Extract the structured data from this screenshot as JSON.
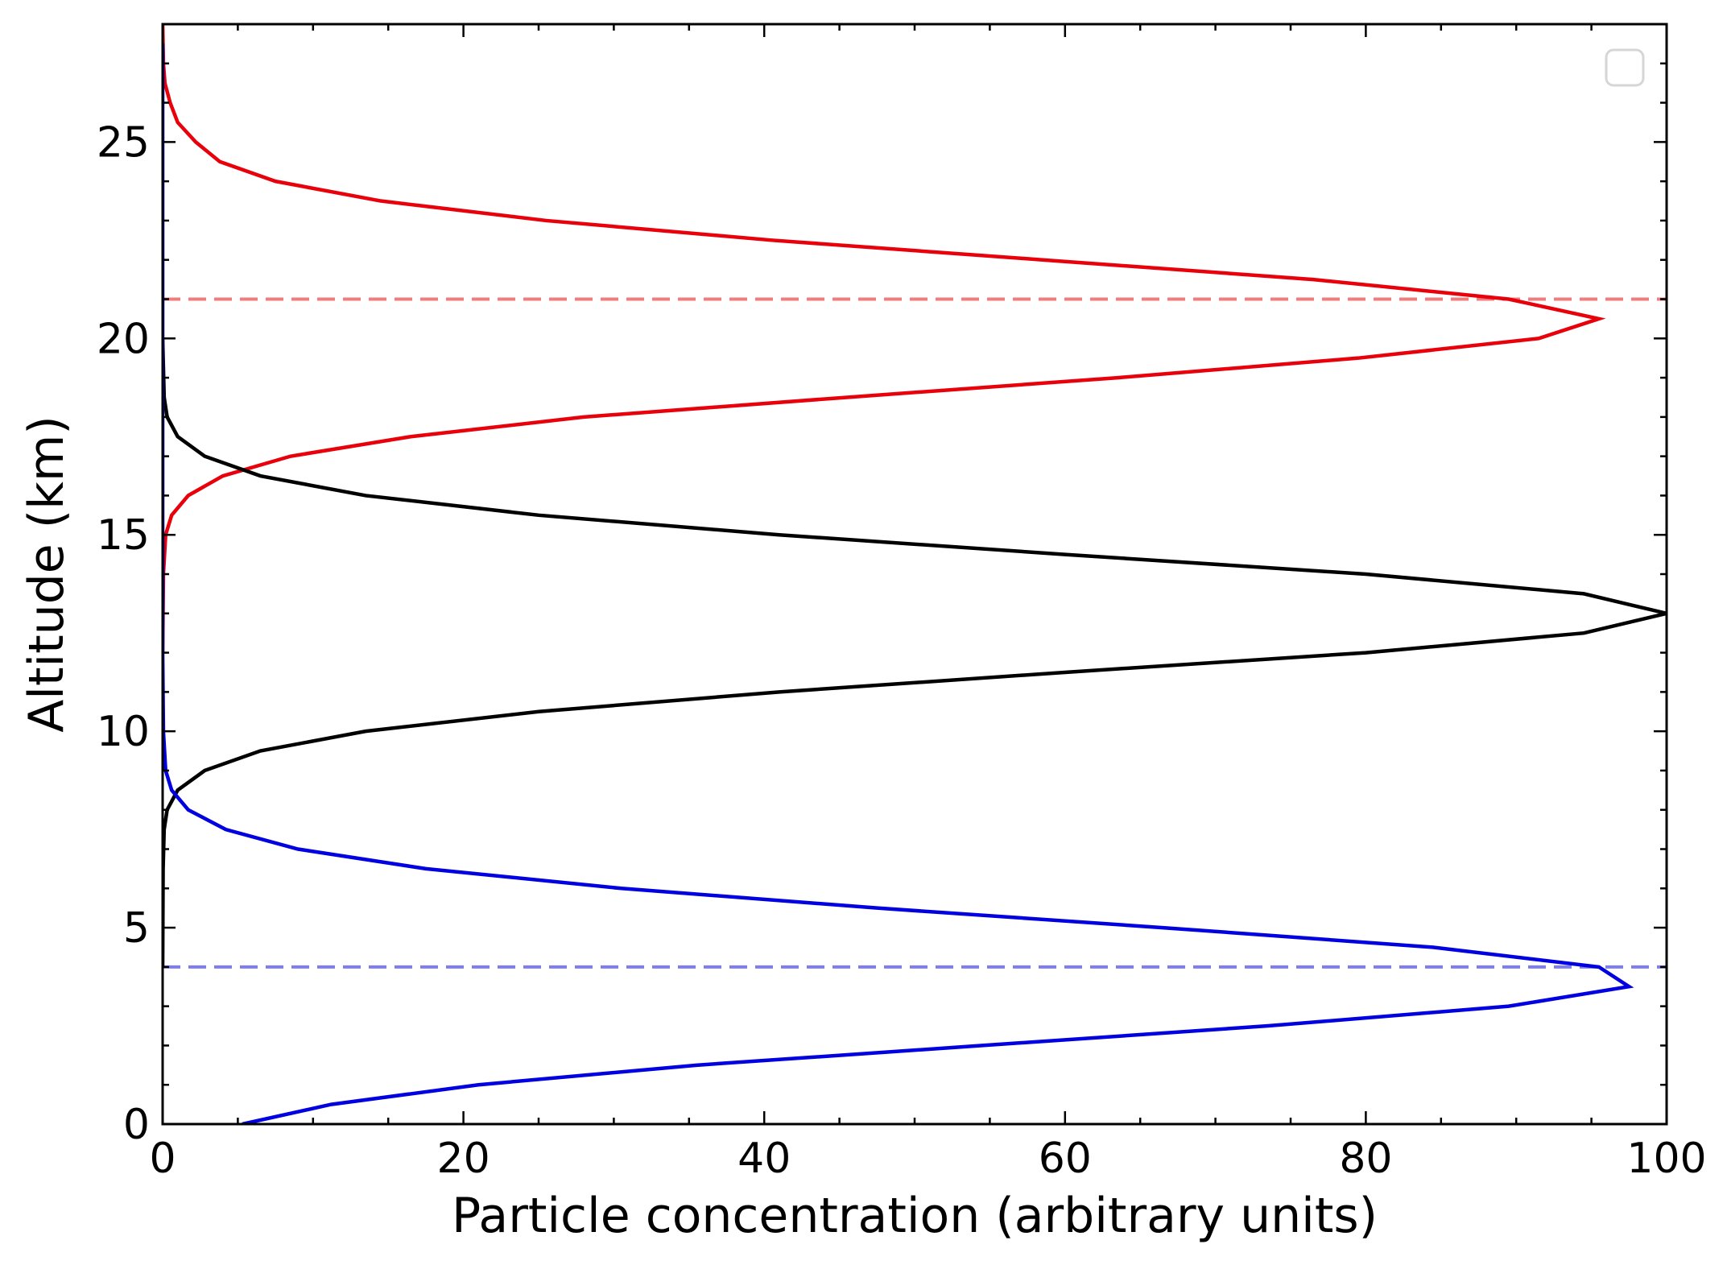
{
  "chart_data": {
    "type": "line",
    "title": "",
    "xlabel": "Particle concentration (arbitrary units)",
    "ylabel": "Altitude (km)",
    "xlim": [
      0,
      100
    ],
    "ylim": [
      0,
      28
    ],
    "xticks": [
      0,
      20,
      40,
      60,
      80,
      100
    ],
    "xtick_labels": [
      "0",
      "20",
      "40",
      "60",
      "80",
      "100"
    ],
    "yticks": [
      0,
      5,
      10,
      15,
      20,
      25
    ],
    "ytick_labels": [
      "0",
      "5",
      "10",
      "15",
      "20",
      "25"
    ],
    "x_minor_step": 5,
    "y_minor_step": 1,
    "grid": false,
    "legend": {
      "placement": "upper right",
      "entries": []
    },
    "series": [
      {
        "name": "red-profile",
        "color": "#e8000b",
        "points": [
          [
            0.0,
            28.0
          ],
          [
            0.05,
            27.0
          ],
          [
            0.15,
            26.5
          ],
          [
            0.5,
            26.0
          ],
          [
            1.0,
            25.5
          ],
          [
            2.2,
            25.0
          ],
          [
            3.8,
            24.5
          ],
          [
            7.5,
            24.0
          ],
          [
            14.5,
            23.5
          ],
          [
            25.5,
            23.0
          ],
          [
            40.5,
            22.5
          ],
          [
            58.5,
            22.0
          ],
          [
            76.5,
            21.5
          ],
          [
            89.5,
            21.0
          ],
          [
            95.5,
            20.5
          ],
          [
            91.5,
            20.0
          ],
          [
            79.5,
            19.5
          ],
          [
            63.5,
            19.0
          ],
          [
            45.5,
            18.5
          ],
          [
            28.0,
            18.0
          ],
          [
            16.5,
            17.5
          ],
          [
            8.5,
            17.0
          ],
          [
            4.0,
            16.5
          ],
          [
            1.7,
            16.0
          ],
          [
            0.6,
            15.5
          ],
          [
            0.2,
            15.0
          ],
          [
            0.05,
            14.0
          ],
          [
            0.0,
            12.0
          ]
        ]
      },
      {
        "name": "black-profile",
        "color": "#000000",
        "points": [
          [
            0.0,
            20.0
          ],
          [
            0.1,
            18.5
          ],
          [
            0.3,
            18.0
          ],
          [
            1.0,
            17.5
          ],
          [
            2.8,
            17.0
          ],
          [
            6.5,
            16.5
          ],
          [
            13.5,
            16.0
          ],
          [
            25.0,
            15.5
          ],
          [
            41.0,
            15.0
          ],
          [
            60.0,
            14.5
          ],
          [
            80.0,
            14.0
          ],
          [
            94.5,
            13.5
          ],
          [
            100.0,
            13.0
          ],
          [
            94.5,
            12.5
          ],
          [
            80.0,
            12.0
          ],
          [
            60.0,
            11.5
          ],
          [
            41.0,
            11.0
          ],
          [
            25.0,
            10.5
          ],
          [
            13.5,
            10.0
          ],
          [
            6.5,
            9.5
          ],
          [
            2.8,
            9.0
          ],
          [
            1.0,
            8.5
          ],
          [
            0.3,
            8.0
          ],
          [
            0.1,
            7.5
          ],
          [
            0.03,
            6.5
          ],
          [
            0.0,
            4.0
          ]
        ]
      },
      {
        "name": "blue-profile",
        "color": "#0000e0",
        "points": [
          [
            0.0,
            27.5
          ],
          [
            0.0,
            12.0
          ],
          [
            0.05,
            10.0
          ],
          [
            0.2,
            9.0
          ],
          [
            0.6,
            8.5
          ],
          [
            1.7,
            8.0
          ],
          [
            4.2,
            7.5
          ],
          [
            9.0,
            7.0
          ],
          [
            17.5,
            6.5
          ],
          [
            30.5,
            6.0
          ],
          [
            47.5,
            5.5
          ],
          [
            66.5,
            5.0
          ],
          [
            84.5,
            4.5
          ],
          [
            95.5,
            4.0
          ],
          [
            97.5,
            3.5
          ],
          [
            89.5,
            3.0
          ],
          [
            73.5,
            2.5
          ],
          [
            54.5,
            2.0
          ],
          [
            35.5,
            1.5
          ],
          [
            21.0,
            1.0
          ],
          [
            11.2,
            0.5
          ],
          [
            5.3,
            0.0
          ]
        ]
      }
    ],
    "reference_lines": [
      {
        "name": "red-reference-line",
        "y": 21,
        "color": "#f07d7d",
        "style": "dashed"
      },
      {
        "name": "blue-reference-line",
        "y": 4,
        "color": "#7d7df0",
        "style": "dashed"
      }
    ]
  }
}
